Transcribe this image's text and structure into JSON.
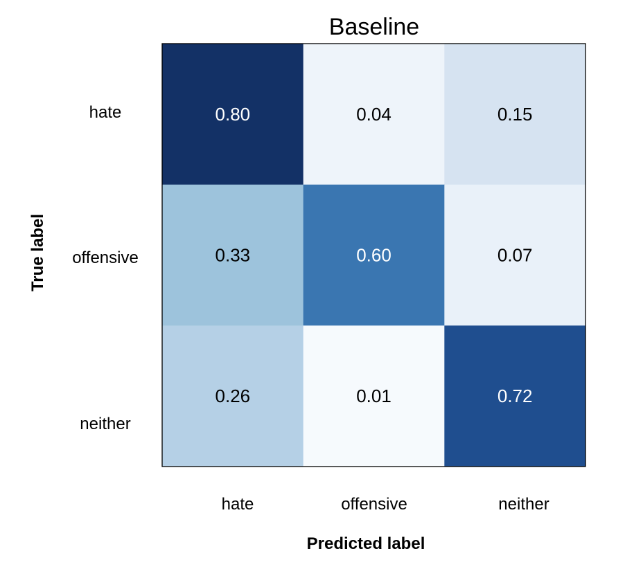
{
  "chart_data": {
    "type": "heatmap",
    "title": "Baseline",
    "xlabel": "Predicted label",
    "ylabel": "True label",
    "x_categories": [
      "hate",
      "offensive",
      "neither"
    ],
    "y_categories": [
      "hate",
      "offensive",
      "neither"
    ],
    "values": [
      [
        0.8,
        0.04,
        0.15
      ],
      [
        0.33,
        0.6,
        0.07
      ],
      [
        0.26,
        0.01,
        0.72
      ]
    ],
    "value_labels": [
      [
        "0.80",
        "0.04",
        "0.15"
      ],
      [
        "0.33",
        "0.60",
        "0.07"
      ],
      [
        "0.26",
        "0.01",
        "0.72"
      ]
    ],
    "colormap": "Blues",
    "cell_colors": [
      [
        "#133166",
        "#eef4fa",
        "#d6e3f1"
      ],
      [
        "#9dc3dc",
        "#3a76b1",
        "#e9f1f9"
      ],
      [
        "#b5d0e6",
        "#f6fafd",
        "#1f4e8f"
      ]
    ],
    "text_colors": {
      "dark_cell": "#ffffff",
      "light_cell": "#000000"
    },
    "legend": false,
    "grid": false
  }
}
